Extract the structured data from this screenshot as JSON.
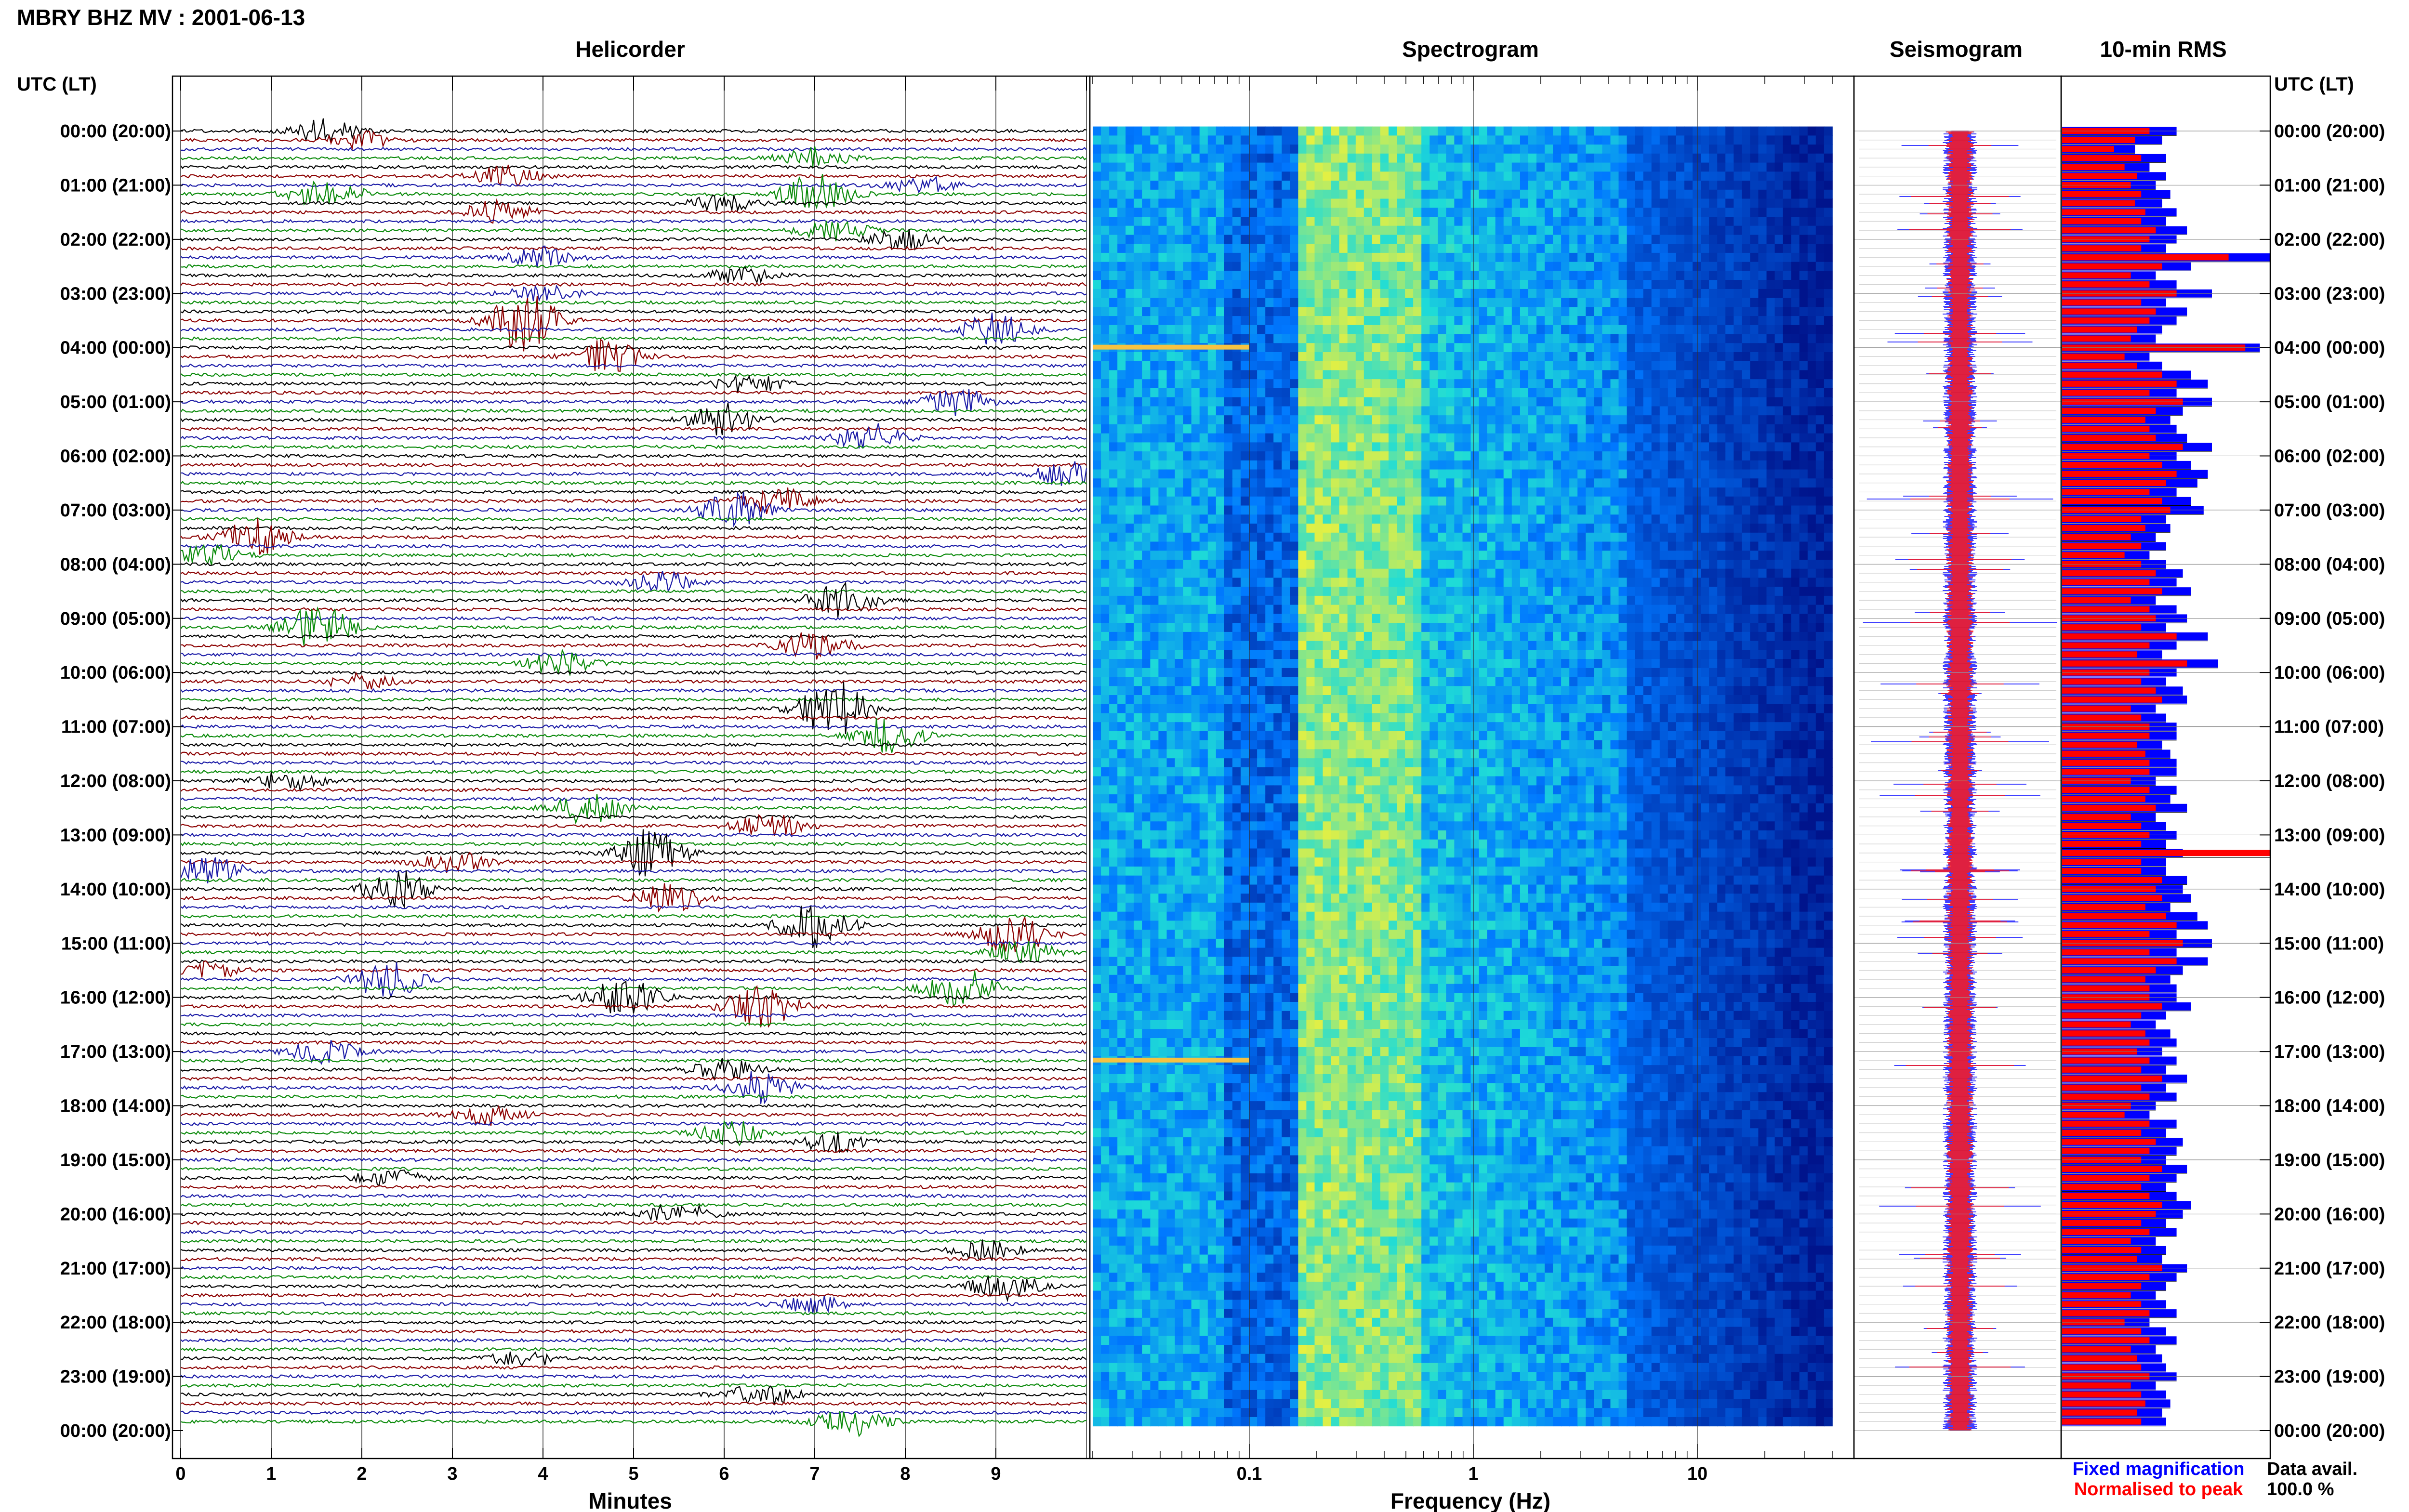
{
  "header": {
    "station_title": "MBRY BHZ MV : 2001-06-13",
    "utc_lt_left": "UTC (LT)",
    "utc_lt_right": "UTC (LT)"
  },
  "panels": {
    "helicorder": "Helicorder",
    "spectrogram": "Spectrogram",
    "seismogram": "Seismogram",
    "rms": "10-min RMS"
  },
  "time_labels": [
    "00:00 (20:00)",
    "01:00 (21:00)",
    "02:00 (22:00)",
    "03:00 (23:00)",
    "04:00 (00:00)",
    "05:00 (01:00)",
    "06:00 (02:00)",
    "07:00 (03:00)",
    "08:00 (04:00)",
    "09:00 (05:00)",
    "10:00 (06:00)",
    "11:00 (07:00)",
    "12:00 (08:00)",
    "13:00 (09:00)",
    "14:00 (10:00)",
    "15:00 (11:00)",
    "16:00 (12:00)",
    "17:00 (13:00)",
    "18:00 (14:00)",
    "19:00 (15:00)",
    "20:00 (16:00)",
    "21:00 (17:00)",
    "22:00 (18:00)",
    "23:00 (19:00)",
    "00:00 (20:00)"
  ],
  "footer": {
    "minutes_label": "Minutes",
    "frequency_label": "Frequency (Hz)",
    "legend_fixed": "Fixed magnification",
    "legend_normalised": "Normalised to peak",
    "data_avail_label": "Data avail.",
    "data_avail_value": "100.0 %"
  },
  "colors": {
    "trace_black": "#000000",
    "trace_red": "#8b0000",
    "trace_blue": "#1a1aa6",
    "trace_green": "#0a8a0a",
    "fixed_blue": "#0000ff",
    "normalised_red": "#ff0000",
    "spec_low": "#00008b",
    "spec_mid": "#1e90ff",
    "spec_high": "#f0f060"
  },
  "chart_data": [
    {
      "type": "line",
      "name": "helicorder",
      "xlabel": "Minutes",
      "x_ticks": [
        "0",
        "1",
        "2",
        "3",
        "4",
        "5",
        "6",
        "7",
        "8",
        "9"
      ],
      "xlim": [
        0,
        10
      ],
      "rows": 144,
      "rows_per_hour": 6,
      "trace_color_cycle": [
        "black",
        "red",
        "blue",
        "green"
      ],
      "events": [
        {
          "row": 0,
          "minute": 1.6,
          "amp": 0.6
        },
        {
          "row": 1,
          "minute": 2.0,
          "amp": 0.4
        },
        {
          "row": 3,
          "minute": 7.0,
          "amp": 0.6
        },
        {
          "row": 5,
          "minute": 3.6,
          "amp": 0.5
        },
        {
          "row": 6,
          "minute": 8.2,
          "amp": 0.4
        },
        {
          "row": 7,
          "minute": 1.6,
          "amp": 0.9
        },
        {
          "row": 7,
          "minute": 7.0,
          "amp": 1.0
        },
        {
          "row": 8,
          "minute": 6.0,
          "amp": 0.4
        },
        {
          "row": 9,
          "minute": 3.5,
          "amp": 0.6
        },
        {
          "row": 11,
          "minute": 7.2,
          "amp": 0.6
        },
        {
          "row": 12,
          "minute": 8.0,
          "amp": 0.5
        },
        {
          "row": 14,
          "minute": 4.0,
          "amp": 0.5
        },
        {
          "row": 16,
          "minute": 6.2,
          "amp": 0.4
        },
        {
          "row": 18,
          "minute": 4.0,
          "amp": 0.4
        },
        {
          "row": 21,
          "minute": 3.8,
          "amp": 1.6
        },
        {
          "row": 22,
          "minute": 9.0,
          "amp": 0.8
        },
        {
          "row": 25,
          "minute": 4.7,
          "amp": 0.8
        },
        {
          "row": 28,
          "minute": 6.3,
          "amp": 0.5
        },
        {
          "row": 30,
          "minute": 8.6,
          "amp": 0.7
        },
        {
          "row": 32,
          "minute": 6.0,
          "amp": 0.8
        },
        {
          "row": 34,
          "minute": 7.6,
          "amp": 0.7
        },
        {
          "row": 38,
          "minute": 9.8,
          "amp": 0.6
        },
        {
          "row": 41,
          "minute": 6.6,
          "amp": 0.7
        },
        {
          "row": 42,
          "minute": 6.1,
          "amp": 0.9
        },
        {
          "row": 45,
          "minute": 0.8,
          "amp": 1.0
        },
        {
          "row": 47,
          "minute": 0.3,
          "amp": 0.5
        },
        {
          "row": 50,
          "minute": 5.3,
          "amp": 0.5
        },
        {
          "row": 52,
          "minute": 7.3,
          "amp": 0.8
        },
        {
          "row": 55,
          "minute": 1.5,
          "amp": 1.2
        },
        {
          "row": 57,
          "minute": 7.0,
          "amp": 0.7
        },
        {
          "row": 59,
          "minute": 4.2,
          "amp": 0.6
        },
        {
          "row": 61,
          "minute": 2.0,
          "amp": 0.4
        },
        {
          "row": 64,
          "minute": 7.2,
          "amp": 1.5
        },
        {
          "row": 67,
          "minute": 7.8,
          "amp": 0.9
        },
        {
          "row": 72,
          "minute": 1.2,
          "amp": 0.5
        },
        {
          "row": 75,
          "minute": 4.5,
          "amp": 0.8
        },
        {
          "row": 77,
          "minute": 6.5,
          "amp": 0.6
        },
        {
          "row": 80,
          "minute": 5.2,
          "amp": 1.2
        },
        {
          "row": 81,
          "minute": 3.0,
          "amp": 0.6
        },
        {
          "row": 82,
          "minute": 0.3,
          "amp": 0.8
        },
        {
          "row": 84,
          "minute": 2.4,
          "amp": 0.9
        },
        {
          "row": 85,
          "minute": 5.4,
          "amp": 0.7
        },
        {
          "row": 88,
          "minute": 7.0,
          "amp": 1.1
        },
        {
          "row": 89,
          "minute": 9.2,
          "amp": 1.0
        },
        {
          "row": 91,
          "minute": 9.3,
          "amp": 0.6
        },
        {
          "row": 93,
          "minute": 0.3,
          "amp": 0.4
        },
        {
          "row": 94,
          "minute": 2.3,
          "amp": 1.0
        },
        {
          "row": 95,
          "minute": 8.6,
          "amp": 1.0
        },
        {
          "row": 96,
          "minute": 4.9,
          "amp": 1.0
        },
        {
          "row": 97,
          "minute": 6.4,
          "amp": 1.2
        },
        {
          "row": 102,
          "minute": 1.6,
          "amp": 0.6
        },
        {
          "row": 104,
          "minute": 6.0,
          "amp": 0.5
        },
        {
          "row": 106,
          "minute": 6.4,
          "amp": 0.8
        },
        {
          "row": 109,
          "minute": 3.4,
          "amp": 0.5
        },
        {
          "row": 111,
          "minute": 6.1,
          "amp": 0.6
        },
        {
          "row": 112,
          "minute": 7.2,
          "amp": 0.5
        },
        {
          "row": 116,
          "minute": 2.3,
          "amp": 0.4
        },
        {
          "row": 120,
          "minute": 5.5,
          "amp": 0.5
        },
        {
          "row": 124,
          "minute": 8.9,
          "amp": 0.5
        },
        {
          "row": 128,
          "minute": 9.1,
          "amp": 0.7
        },
        {
          "row": 130,
          "minute": 7.0,
          "amp": 0.4
        },
        {
          "row": 136,
          "minute": 3.8,
          "amp": 0.4
        },
        {
          "row": 140,
          "minute": 6.4,
          "amp": 0.6
        },
        {
          "row": 143,
          "minute": 7.4,
          "amp": 0.7
        }
      ]
    },
    {
      "type": "heatmap",
      "name": "spectrogram",
      "xlabel": "Frequency (Hz)",
      "x_scale": "log",
      "xlim": [
        0.02,
        50
      ],
      "x_ticks": [
        "0.1",
        "1",
        "10"
      ],
      "rows": 144,
      "data_extends_to_hz": 40,
      "horizontal_streaks_at_rows": [
        24,
        103
      ],
      "bands": [
        {
          "f_from": 0.02,
          "f_to": 0.08,
          "level": "medium-high cyan"
        },
        {
          "f_from": 0.08,
          "f_to": 0.17,
          "level": "low blue"
        },
        {
          "f_from": 0.17,
          "f_to": 0.6,
          "level": "high yellow-green"
        },
        {
          "f_from": 0.6,
          "f_to": 5,
          "level": "medium cyan-blue"
        },
        {
          "f_from": 5,
          "f_to": 40,
          "level": "low deep blue"
        }
      ]
    },
    {
      "type": "line",
      "name": "seismogram",
      "rows": 144,
      "legend": [
        "Fixed magnification",
        "Normalised to peak"
      ]
    },
    {
      "type": "bar",
      "name": "10-min RMS",
      "orientation": "horizontal",
      "rows": 144,
      "series": [
        {
          "name": "Fixed magnification",
          "color": "#0000ff",
          "values": [
            0.55,
            0.48,
            0.35,
            0.5,
            0.42,
            0.5,
            0.45,
            0.52,
            0.48,
            0.55,
            0.5,
            0.6,
            0.55,
            0.5,
            1.0,
            0.62,
            0.45,
            0.55,
            0.72,
            0.5,
            0.6,
            0.55,
            0.48,
            0.45,
            0.95,
            0.42,
            0.48,
            0.62,
            0.7,
            0.55,
            0.72,
            0.58,
            0.52,
            0.55,
            0.6,
            0.72,
            0.55,
            0.62,
            0.7,
            0.65,
            0.55,
            0.62,
            0.68,
            0.5,
            0.52,
            0.45,
            0.5,
            0.42,
            0.5,
            0.58,
            0.55,
            0.62,
            0.45,
            0.55,
            0.6,
            0.5,
            0.7,
            0.55,
            0.48,
            0.75,
            0.55,
            0.5,
            0.58,
            0.6,
            0.45,
            0.5,
            0.55,
            0.55,
            0.48,
            0.52,
            0.55,
            0.55,
            0.45,
            0.55,
            0.52,
            0.6,
            0.45,
            0.5,
            0.55,
            0.5,
            0.58,
            0.5,
            0.5,
            0.6,
            0.58,
            0.62,
            0.52,
            0.65,
            0.7,
            0.55,
            0.72,
            0.55,
            0.7,
            0.58,
            0.52,
            0.55,
            0.55,
            0.62,
            0.5,
            0.45,
            0.52,
            0.55,
            0.48,
            0.55,
            0.5,
            0.6,
            0.5,
            0.55,
            0.45,
            0.42,
            0.55,
            0.5,
            0.58,
            0.55,
            0.5,
            0.6,
            0.55,
            0.5,
            0.55,
            0.62,
            0.58,
            0.5,
            0.55,
            0.45,
            0.5,
            0.48,
            0.6,
            0.55,
            0.5,
            0.45,
            0.5,
            0.55,
            0.42,
            0.5,
            0.55,
            0.45,
            0.48,
            0.5,
            0.55,
            0.45,
            0.5,
            0.52,
            0.48,
            0.5
          ]
        },
        {
          "name": "Normalised to peak",
          "color": "#ff0000",
          "values": [
            0.42,
            0.35,
            0.25,
            0.38,
            0.3,
            0.36,
            0.33,
            0.38,
            0.35,
            0.4,
            0.38,
            0.45,
            0.42,
            0.38,
            0.8,
            0.48,
            0.33,
            0.42,
            0.55,
            0.38,
            0.45,
            0.42,
            0.36,
            0.33,
            0.88,
            0.3,
            0.36,
            0.48,
            0.55,
            0.42,
            0.58,
            0.45,
            0.4,
            0.42,
            0.45,
            0.58,
            0.42,
            0.48,
            0.55,
            0.5,
            0.42,
            0.48,
            0.52,
            0.38,
            0.4,
            0.33,
            0.38,
            0.3,
            0.38,
            0.45,
            0.42,
            0.48,
            0.33,
            0.42,
            0.45,
            0.38,
            0.55,
            0.42,
            0.36,
            0.6,
            0.42,
            0.38,
            0.45,
            0.48,
            0.33,
            0.38,
            0.42,
            0.42,
            0.36,
            0.4,
            0.42,
            0.42,
            0.33,
            0.42,
            0.4,
            0.45,
            0.33,
            0.38,
            0.42,
            0.38,
            1.0,
            0.38,
            0.38,
            0.48,
            0.45,
            0.48,
            0.4,
            0.5,
            0.55,
            0.42,
            0.58,
            0.42,
            0.55,
            0.45,
            0.4,
            0.42,
            0.42,
            0.48,
            0.38,
            0.33,
            0.4,
            0.42,
            0.36,
            0.42,
            0.38,
            0.48,
            0.38,
            0.42,
            0.33,
            0.3,
            0.42,
            0.38,
            0.45,
            0.42,
            0.38,
            0.48,
            0.42,
            0.38,
            0.42,
            0.48,
            0.45,
            0.38,
            0.42,
            0.33,
            0.38,
            0.36,
            0.48,
            0.42,
            0.38,
            0.33,
            0.38,
            0.42,
            0.3,
            0.38,
            0.42,
            0.33,
            0.36,
            0.38,
            0.42,
            0.33,
            0.38,
            0.4,
            0.36,
            0.38
          ]
        }
      ]
    }
  ]
}
